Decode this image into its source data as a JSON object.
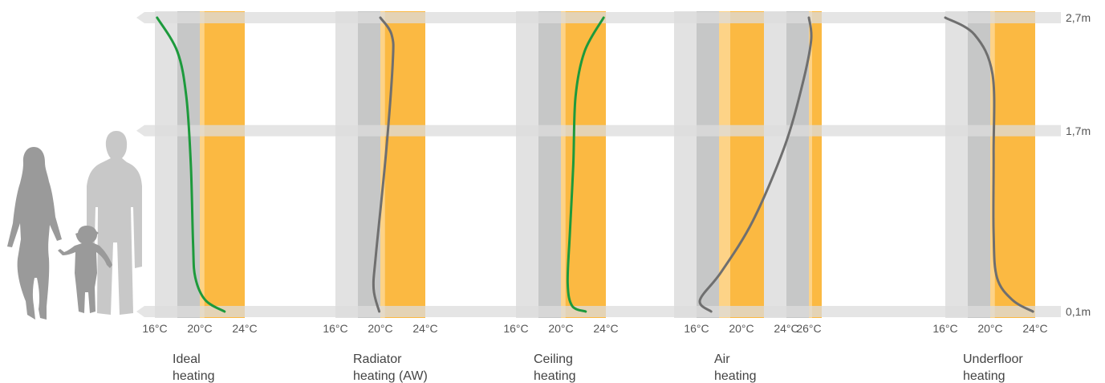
{
  "colors": {
    "band_light": "#e2e2e2",
    "band_dark": "#c6c7c7",
    "band_orange": "#fbb942",
    "band_orange_light": "#fdd387",
    "ref_bar": "#dcdcdc",
    "curve_ideal": "#1d9a3c",
    "curve_other": "#6f6f6f",
    "silhouette_woman": "#9a9a9a",
    "silhouette_man": "#c8c8c8",
    "silhouette_child": "#9a9a9a"
  },
  "icons": [
    "woman-silhouette-icon",
    "child-silhouette-icon",
    "man-silhouette-icon"
  ],
  "chart_data": {
    "type": "line",
    "x_unit": "°C",
    "y_unit": "m",
    "height_levels": [
      {
        "value": 0.1,
        "label": "0,1m"
      },
      {
        "value": 1.7,
        "label": "1,7m"
      },
      {
        "value": 2.7,
        "label": "2,7m"
      }
    ],
    "panels": [
      {
        "title_lines": [
          "Ideal",
          "heating"
        ],
        "ticks": [
          {
            "value": 16,
            "label": "16°C"
          },
          {
            "value": 20,
            "label": "20°C"
          },
          {
            "value": 24,
            "label": "24°C"
          }
        ],
        "xlim": [
          16,
          24
        ],
        "curve_color": "curve_ideal",
        "series": [
          {
            "points": [
              [
                16.2,
                2.7
              ],
              [
                18.0,
                2.4
              ],
              [
                18.8,
                2.0
              ],
              [
                19.2,
                1.4
              ],
              [
                19.4,
                0.7
              ],
              [
                19.6,
                0.4
              ],
              [
                20.5,
                0.2
              ],
              [
                22.2,
                0.1
              ]
            ]
          }
        ]
      },
      {
        "title_lines": [
          "Radiator",
          "heating (AW)"
        ],
        "ticks": [
          {
            "value": 16,
            "label": "16°C"
          },
          {
            "value": 20,
            "label": "20°C"
          },
          {
            "value": 24,
            "label": "24°C"
          }
        ],
        "xlim": [
          16,
          24
        ],
        "curve_color": "curve_other",
        "series": [
          {
            "points": [
              [
                20.0,
                2.7
              ],
              [
                21.0,
                2.55
              ],
              [
                21.1,
                2.3
              ],
              [
                20.5,
                1.5
              ],
              [
                19.6,
                0.6
              ],
              [
                19.4,
                0.3
              ],
              [
                19.9,
                0.1
              ]
            ]
          }
        ]
      },
      {
        "title_lines": [
          "Ceiling",
          "heating"
        ],
        "ticks": [
          {
            "value": 16,
            "label": "16°C"
          },
          {
            "value": 20,
            "label": "20°C"
          },
          {
            "value": 24,
            "label": "24°C"
          }
        ],
        "xlim": [
          16,
          24
        ],
        "curve_color": "curve_ideal",
        "series": [
          {
            "points": [
              [
                23.8,
                2.7
              ],
              [
                22.1,
                2.4
              ],
              [
                21.3,
                2.0
              ],
              [
                21.1,
                1.4
              ],
              [
                20.8,
                0.8
              ],
              [
                20.6,
                0.35
              ],
              [
                21.0,
                0.15
              ],
              [
                22.2,
                0.1
              ]
            ]
          }
        ]
      },
      {
        "title_lines": [
          "Air",
          "heating"
        ],
        "ticks": [
          {
            "value": 16,
            "label": "16°C"
          },
          {
            "value": 20,
            "label": "20°C"
          },
          {
            "value": 24,
            "label": "24°C"
          },
          {
            "value": 26,
            "label": "26°C"
          }
        ],
        "xlim": [
          16,
          26
        ],
        "curve_color": "curve_other",
        "series": [
          {
            "points": [
              [
                26.0,
                2.7
              ],
              [
                26.2,
                2.5
              ],
              [
                25.4,
                2.1
              ],
              [
                23.8,
                1.55
              ],
              [
                21.0,
                0.9
              ],
              [
                18.2,
                0.45
              ],
              [
                16.3,
                0.2
              ],
              [
                17.3,
                0.1
              ]
            ]
          }
        ]
      },
      {
        "title_lines": [
          "Underfloor",
          "heating"
        ],
        "ticks": [
          {
            "value": 16,
            "label": "16°C"
          },
          {
            "value": 20,
            "label": "20°C"
          },
          {
            "value": 24,
            "label": "24°C"
          }
        ],
        "xlim": [
          16,
          24
        ],
        "curve_color": "curve_other",
        "series": [
          {
            "points": [
              [
                16.0,
                2.7
              ],
              [
                18.6,
                2.55
              ],
              [
                20.2,
                2.2
              ],
              [
                20.3,
                1.5
              ],
              [
                20.3,
                0.8
              ],
              [
                20.6,
                0.4
              ],
              [
                22.0,
                0.2
              ],
              [
                23.8,
                0.1
              ]
            ]
          }
        ]
      }
    ]
  }
}
